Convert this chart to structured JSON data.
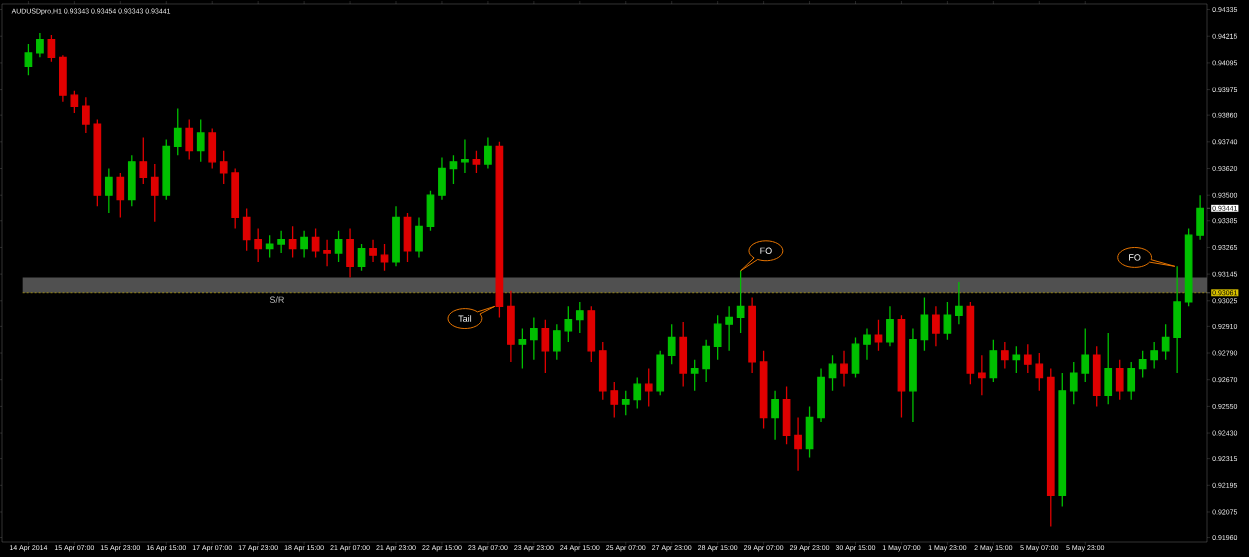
{
  "chart_data": {
    "type": "candlestick",
    "title": "AUDUSDpro,H1  0.93343 0.93454 0.93343 0.93441",
    "categories": [
      "14 Apr 2014",
      null,
      null,
      null,
      "15 Apr 07:00",
      null,
      null,
      null,
      "15 Apr 23:00",
      null,
      null,
      null,
      "16 Apr 15:00",
      null,
      null,
      null,
      "17 Apr 07:00",
      null,
      null,
      null,
      "17 Apr 23:00",
      null,
      null,
      null,
      "18 Apr 15:00",
      null,
      null,
      null,
      "21 Apr 07:00",
      null,
      null,
      null,
      "21 Apr 23:00",
      null,
      null,
      null,
      "22 Apr 15:00",
      null,
      null,
      null,
      "23 Apr 07:00",
      null,
      null,
      null,
      "23 Apr 23:00",
      null,
      null,
      null,
      "24 Apr 15:00",
      null,
      null,
      null,
      "25 Apr 07:00",
      null,
      null,
      null,
      "27 Apr 23:00",
      null,
      null,
      null,
      "28 Apr 15:00",
      null,
      null,
      null,
      "29 Apr 07:00",
      null,
      null,
      null,
      "29 Apr 23:00",
      null,
      null,
      null,
      "30 Apr 15:00",
      null,
      null,
      null,
      "1 May 07:00",
      null,
      null,
      null,
      "1 May 23:00",
      null,
      null,
      null,
      "2 May 15:00",
      null,
      null,
      null,
      "5 May 07:00",
      null,
      null,
      null,
      "5 May 23:00",
      null,
      null,
      null,
      null,
      null,
      null,
      null,
      null,
      null,
      null
    ],
    "ohlc": [
      [
        0.9408,
        0.9418,
        0.9404,
        0.9414
      ],
      [
        0.9414,
        0.9423,
        0.9412,
        0.942
      ],
      [
        0.942,
        0.9422,
        0.941,
        0.9412
      ],
      [
        0.9412,
        0.9413,
        0.9392,
        0.9395
      ],
      [
        0.9395,
        0.9397,
        0.9387,
        0.939
      ],
      [
        0.939,
        0.9394,
        0.9378,
        0.9382
      ],
      [
        0.9382,
        0.9384,
        0.9345,
        0.935
      ],
      [
        0.935,
        0.9362,
        0.9342,
        0.9358
      ],
      [
        0.9358,
        0.936,
        0.934,
        0.9348
      ],
      [
        0.9348,
        0.9368,
        0.9345,
        0.9365
      ],
      [
        0.9365,
        0.9376,
        0.9355,
        0.9358
      ],
      [
        0.9358,
        0.9364,
        0.9338,
        0.935
      ],
      [
        0.935,
        0.9375,
        0.9348,
        0.9372
      ],
      [
        0.9372,
        0.9389,
        0.9368,
        0.938
      ],
      [
        0.938,
        0.9384,
        0.9366,
        0.937
      ],
      [
        0.937,
        0.9384,
        0.9365,
        0.9378
      ],
      [
        0.9378,
        0.938,
        0.9362,
        0.9365
      ],
      [
        0.9365,
        0.937,
        0.9355,
        0.936
      ],
      [
        0.936,
        0.9362,
        0.9335,
        0.934
      ],
      [
        0.934,
        0.9344,
        0.9325,
        0.933
      ],
      [
        0.933,
        0.9335,
        0.932,
        0.9326
      ],
      [
        0.9326,
        0.9332,
        0.9322,
        0.9328
      ],
      [
        0.9328,
        0.9334,
        0.9324,
        0.933
      ],
      [
        0.933,
        0.9336,
        0.9322,
        0.9326
      ],
      [
        0.9326,
        0.9334,
        0.9322,
        0.9331
      ],
      [
        0.9331,
        0.9335,
        0.9322,
        0.9325
      ],
      [
        0.9325,
        0.933,
        0.9318,
        0.9324
      ],
      [
        0.9324,
        0.9334,
        0.932,
        0.933
      ],
      [
        0.933,
        0.9335,
        0.9313,
        0.9318
      ],
      [
        0.9318,
        0.9328,
        0.9316,
        0.9326
      ],
      [
        0.9326,
        0.933,
        0.932,
        0.9323
      ],
      [
        0.9323,
        0.9328,
        0.9316,
        0.932
      ],
      [
        0.932,
        0.9345,
        0.9318,
        0.934
      ],
      [
        0.934,
        0.9342,
        0.932,
        0.9325
      ],
      [
        0.9325,
        0.934,
        0.9322,
        0.9336
      ],
      [
        0.9336,
        0.9352,
        0.9334,
        0.935
      ],
      [
        0.935,
        0.9367,
        0.9348,
        0.9362
      ],
      [
        0.9362,
        0.9368,
        0.9355,
        0.9365
      ],
      [
        0.9365,
        0.9375,
        0.936,
        0.9366
      ],
      [
        0.9366,
        0.937,
        0.936,
        0.9364
      ],
      [
        0.9364,
        0.9376,
        0.9362,
        0.9372
      ],
      [
        0.9372,
        0.9374,
        0.9295,
        0.93
      ],
      [
        0.93,
        0.9307,
        0.9275,
        0.9283
      ],
      [
        0.9283,
        0.929,
        0.9272,
        0.9285
      ],
      [
        0.9285,
        0.9295,
        0.9276,
        0.929
      ],
      [
        0.929,
        0.9294,
        0.927,
        0.928
      ],
      [
        0.928,
        0.9292,
        0.9276,
        0.9289
      ],
      [
        0.9289,
        0.93,
        0.9284,
        0.9294
      ],
      [
        0.9294,
        0.9302,
        0.9288,
        0.9298
      ],
      [
        0.9298,
        0.93,
        0.9275,
        0.928
      ],
      [
        0.928,
        0.9284,
        0.9258,
        0.9262
      ],
      [
        0.9262,
        0.9266,
        0.925,
        0.9256
      ],
      [
        0.9256,
        0.9262,
        0.9251,
        0.9258
      ],
      [
        0.9258,
        0.9268,
        0.9254,
        0.9265
      ],
      [
        0.9265,
        0.9272,
        0.9255,
        0.9262
      ],
      [
        0.9262,
        0.928,
        0.926,
        0.9278
      ],
      [
        0.9278,
        0.9292,
        0.9274,
        0.9286
      ],
      [
        0.9286,
        0.9293,
        0.9264,
        0.927
      ],
      [
        0.927,
        0.9276,
        0.9262,
        0.9272
      ],
      [
        0.9272,
        0.9285,
        0.9266,
        0.9282
      ],
      [
        0.9282,
        0.9296,
        0.9276,
        0.9292
      ],
      [
        0.9292,
        0.93,
        0.928,
        0.9295
      ],
      [
        0.9295,
        0.9316,
        0.9288,
        0.93
      ],
      [
        0.93,
        0.9304,
        0.927,
        0.9275
      ],
      [
        0.9275,
        0.928,
        0.9245,
        0.925
      ],
      [
        0.925,
        0.9262,
        0.924,
        0.9258
      ],
      [
        0.9258,
        0.9264,
        0.9238,
        0.9242
      ],
      [
        0.9242,
        0.925,
        0.9226,
        0.9236
      ],
      [
        0.9236,
        0.9255,
        0.9232,
        0.925
      ],
      [
        0.925,
        0.9272,
        0.9248,
        0.9268
      ],
      [
        0.9268,
        0.9278,
        0.9262,
        0.9274
      ],
      [
        0.9274,
        0.928,
        0.9264,
        0.927
      ],
      [
        0.927,
        0.9286,
        0.9268,
        0.9283
      ],
      [
        0.9283,
        0.929,
        0.9276,
        0.9287
      ],
      [
        0.9287,
        0.9294,
        0.928,
        0.9284
      ],
      [
        0.9284,
        0.93,
        0.9282,
        0.9294
      ],
      [
        0.9294,
        0.9296,
        0.925,
        0.9262
      ],
      [
        0.9262,
        0.929,
        0.9248,
        0.9285
      ],
      [
        0.9285,
        0.9304,
        0.928,
        0.9296
      ],
      [
        0.9296,
        0.93,
        0.9282,
        0.9288
      ],
      [
        0.9288,
        0.9302,
        0.9285,
        0.9296
      ],
      [
        0.9296,
        0.9311,
        0.9292,
        0.93
      ],
      [
        0.93,
        0.9302,
        0.9265,
        0.927
      ],
      [
        0.927,
        0.9278,
        0.926,
        0.9268
      ],
      [
        0.9268,
        0.9285,
        0.9266,
        0.928
      ],
      [
        0.928,
        0.9284,
        0.9272,
        0.9276
      ],
      [
        0.9276,
        0.9282,
        0.927,
        0.9278
      ],
      [
        0.9278,
        0.9283,
        0.927,
        0.9274
      ],
      [
        0.9274,
        0.9279,
        0.9262,
        0.9268
      ],
      [
        0.9268,
        0.9272,
        0.9201,
        0.9215
      ],
      [
        0.9215,
        0.927,
        0.921,
        0.9262
      ],
      [
        0.9262,
        0.9275,
        0.9256,
        0.927
      ],
      [
        0.927,
        0.929,
        0.9266,
        0.9278
      ],
      [
        0.9278,
        0.9282,
        0.9255,
        0.926
      ],
      [
        0.926,
        0.9288,
        0.9256,
        0.9272
      ],
      [
        0.9272,
        0.9276,
        0.9258,
        0.9262
      ],
      [
        0.9262,
        0.9275,
        0.9258,
        0.9272
      ],
      [
        0.9272,
        0.928,
        0.9268,
        0.9276
      ],
      [
        0.9276,
        0.9284,
        0.9272,
        0.928
      ],
      [
        0.928,
        0.9292,
        0.9276,
        0.9286
      ],
      [
        0.9286,
        0.9318,
        0.927,
        0.9302
      ],
      [
        0.9302,
        0.9335,
        0.93,
        0.9332
      ],
      [
        0.9332,
        0.935,
        0.933,
        0.93441
      ]
    ],
    "colors": [
      "#00c000",
      "#00c000",
      "#e00000",
      "#e00000",
      "#e00000",
      "#e00000",
      "#e00000",
      "#00c000",
      "#e00000",
      "#00c000",
      "#e00000",
      "#e00000",
      "#00c000",
      "#00c000",
      "#e00000",
      "#00c000",
      "#e00000",
      "#e00000",
      "#e00000",
      "#e00000",
      "#e00000",
      "#00c000",
      "#00c000",
      "#e00000",
      "#00c000",
      "#e00000",
      "#e00000",
      "#00c000",
      "#e00000",
      "#00c000",
      "#e00000",
      "#e00000",
      "#00c000",
      "#e00000",
      "#00c000",
      "#00c000",
      "#00c000",
      "#00c000",
      "#00c000",
      "#e00000",
      "#00c000",
      "#e00000",
      "#e00000",
      "#00c000",
      "#00c000",
      "#e00000",
      "#00c000",
      "#00c000",
      "#00c000",
      "#e00000",
      "#e00000",
      "#e00000",
      "#00c000",
      "#00c000",
      "#e00000",
      "#00c000",
      "#00c000",
      "#e00000",
      "#00c000",
      "#00c000",
      "#00c000",
      "#00c000",
      "#00c000",
      "#e00000",
      "#e00000",
      "#00c000",
      "#e00000",
      "#e00000",
      "#00c000",
      "#00c000",
      "#00c000",
      "#e00000",
      "#00c000",
      "#00c000",
      "#e00000",
      "#00c000",
      "#e00000",
      "#00c000",
      "#00c000",
      "#e00000",
      "#00c000",
      "#00c000",
      "#e00000",
      "#e00000",
      "#00c000",
      "#e00000",
      "#00c000",
      "#e00000",
      "#e00000",
      "#e00000",
      "#00c000",
      "#00c000",
      "#00c000",
      "#e00000",
      "#00c000",
      "#e00000",
      "#00c000",
      "#00c000",
      "#00c000",
      "#00c000",
      "#00c000",
      "#00c000",
      "#00c000"
    ],
    "ylim": [
      0.9194,
      0.9436
    ],
    "yticks": [
      0.94335,
      0.94215,
      0.94095,
      0.93975,
      {
        "value": 0.9386,
        "label": "0.93860"
      },
      {
        "value": 0.9374,
        "label": "0.93740"
      },
      {
        "value": 0.9362,
        "label": "0.93620"
      },
      {
        "value": 0.935,
        "label": "0.93500"
      },
      0.93441,
      0.93385,
      0.93265,
      0.93145,
      0.93061,
      0.93025,
      {
        "value": 0.9291,
        "label": "0.92910"
      },
      {
        "value": 0.9279,
        "label": "0.92790"
      },
      {
        "value": 0.9267,
        "label": "0.92670"
      },
      {
        "value": 0.9255,
        "label": "0.92550"
      },
      {
        "value": 0.9243,
        "label": "0.92430"
      },
      0.92315,
      0.92195,
      0.92075,
      {
        "value": 0.9196,
        "label": "0.91960"
      }
    ],
    "ref_lines": [
      {
        "axis": "y",
        "value": 0.93061,
        "label": "S/R",
        "color": "#d8c000",
        "line_style": "dashed"
      }
    ],
    "bands": [
      {
        "axis": "y",
        "from": 0.93061,
        "to": 0.9313,
        "color": "#505050"
      }
    ],
    "annotations": [
      "Tail",
      "FO",
      "FO"
    ],
    "grid": false
  }
}
